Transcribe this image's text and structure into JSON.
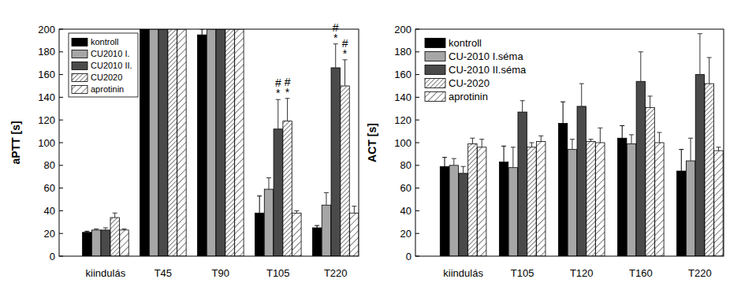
{
  "chart_data": [
    {
      "type": "bar",
      "y_label": "aPTT [s]",
      "categories": [
        "kiindulás",
        "T45",
        "T90",
        "T105",
        "T220"
      ],
      "series": [
        {
          "name": "kontroll",
          "color": "#000000",
          "values": [
            21,
            200,
            195,
            38,
            25
          ],
          "errors": [
            1,
            null,
            5,
            15,
            2
          ]
        },
        {
          "name": "CU2010 I.",
          "color": "#a6a6a6",
          "values": [
            23,
            200,
            200,
            59,
            45
          ],
          "errors": [
            1,
            null,
            null,
            10,
            11
          ]
        },
        {
          "name": "CU2010 II.",
          "color": "#4a4a4a",
          "values": [
            23,
            200,
            200,
            112,
            166
          ],
          "errors": [
            2,
            null,
            null,
            26,
            21
          ]
        },
        {
          "name": "CU2020",
          "color": "#ffffff",
          "values": [
            34,
            200,
            200,
            119,
            150
          ],
          "errors": [
            4,
            null,
            null,
            20,
            23
          ]
        },
        {
          "name": "aprotinin",
          "color": "#ffffff",
          "values": [
            23,
            200,
            200,
            38,
            38
          ],
          "errors": [
            1,
            null,
            null,
            2,
            6
          ]
        }
      ],
      "ylim": [
        0,
        200
      ],
      "yticks": [
        0,
        20,
        40,
        60,
        80,
        100,
        120,
        140,
        160,
        180,
        200
      ],
      "legend": "upper left",
      "annotations": [
        {
          "category": "T105",
          "series": "CU2010 II.",
          "text": "*"
        },
        {
          "category": "T105",
          "series": "CU2010 II.",
          "text": "#"
        },
        {
          "category": "T105",
          "series": "CU2020",
          "text": "*"
        },
        {
          "category": "T105",
          "series": "CU2020",
          "text": "#"
        },
        {
          "category": "T220",
          "series": "CU2010 II.",
          "text": "*"
        },
        {
          "category": "T220",
          "series": "CU2010 II.",
          "text": "#"
        },
        {
          "category": "T220",
          "series": "CU2020",
          "text": "*"
        },
        {
          "category": "T220",
          "series": "CU2020",
          "text": "#"
        }
      ]
    },
    {
      "type": "bar",
      "y_label": "ACT [s]",
      "categories": [
        "kiindulás",
        "T105",
        "T120",
        "T160",
        "T220"
      ],
      "series": [
        {
          "name": "kontroll",
          "color": "#000000",
          "values": [
            79,
            83,
            117,
            104,
            75
          ],
          "errors": [
            8,
            14,
            19,
            11,
            19
          ]
        },
        {
          "name": "CU-2010 I.séma",
          "color": "#a6a6a6",
          "values": [
            80,
            78,
            94,
            99,
            84
          ],
          "errors": [
            6,
            18,
            9,
            8,
            20
          ]
        },
        {
          "name": "CU-2010 II.séma",
          "color": "#4a4a4a",
          "values": [
            73,
            127,
            132,
            154,
            160
          ],
          "errors": [
            6,
            10,
            20,
            26,
            36
          ]
        },
        {
          "name": "CU-2020",
          "color": "#ffffff",
          "values": [
            99,
            96,
            101,
            131,
            152
          ],
          "errors": [
            5,
            4,
            2,
            10,
            23
          ]
        },
        {
          "name": "aprotinin",
          "color": "#ffffff",
          "values": [
            96,
            101,
            100,
            100,
            93
          ],
          "errors": [
            7,
            5,
            13,
            9,
            3
          ]
        }
      ],
      "ylim": [
        0,
        200
      ],
      "yticks": [
        0,
        20,
        40,
        60,
        80,
        100,
        120,
        140,
        160,
        180,
        200
      ],
      "legend": "upper left"
    }
  ]
}
